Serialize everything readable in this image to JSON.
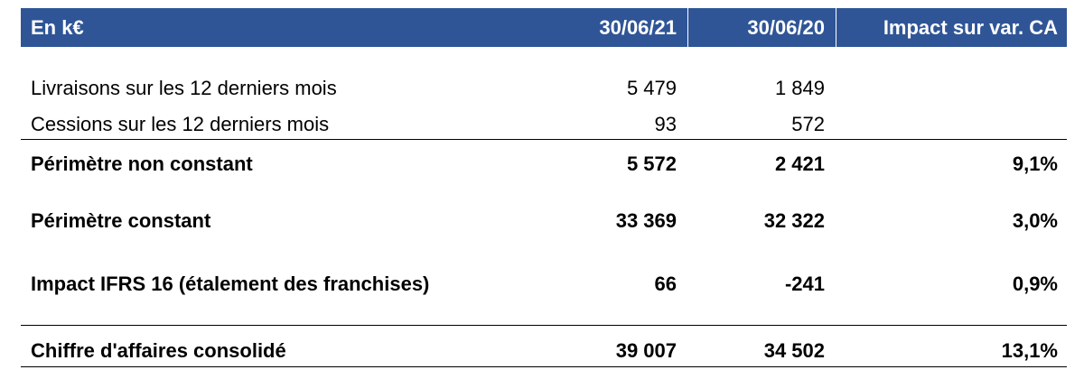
{
  "header": {
    "label": "En k€",
    "col1": "30/06/21",
    "col2": "30/06/20",
    "col3": "Impact sur var. CA"
  },
  "rows": [
    {
      "label": "Livraisons sur les 12 derniers mois",
      "v1": "5 479",
      "v2": "1 849",
      "v3": ""
    },
    {
      "label": "Cessions sur les 12 derniers mois",
      "v1": "93",
      "v2": "572",
      "v3": ""
    },
    {
      "label": "Périmètre non constant",
      "v1": "5 572",
      "v2": "2 421",
      "v3": "9,1%"
    },
    {
      "label": "Périmètre constant",
      "v1": "33 369",
      "v2": "32 322",
      "v3": "3,0%"
    },
    {
      "label": "Impact IFRS 16 (étalement des franchises)",
      "v1": "66",
      "v2": "-241",
      "v3": "0,9%"
    },
    {
      "label": "Chiffre d'affaires consolidé",
      "v1": "39 007",
      "v2": "34 502",
      "v3": "13,1%"
    }
  ],
  "colors": {
    "header_bg": "#2f5597",
    "header_text": "#ffffff",
    "rule": "#000000"
  }
}
